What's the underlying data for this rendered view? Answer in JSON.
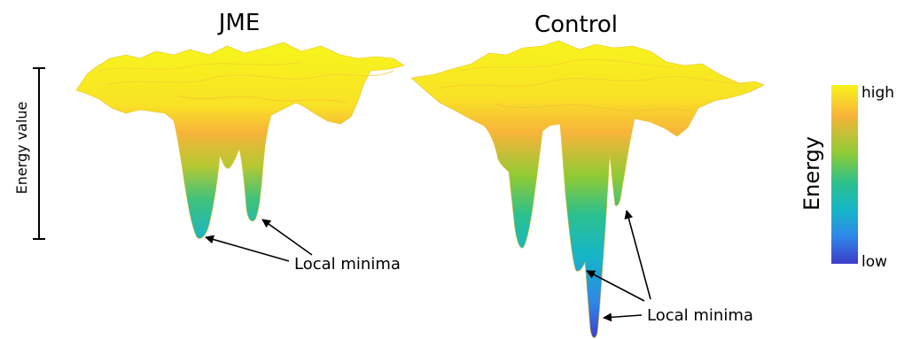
{
  "panels": [
    {
      "id": "jme",
      "title": "JME",
      "annotation": "Local minima"
    },
    {
      "id": "control",
      "title": "Control",
      "annotation": "Local minima"
    }
  ],
  "scale_bar": {
    "label": "Energy value"
  },
  "colorbar": {
    "title": "Energy",
    "high_label": "high",
    "low_label": "low",
    "colors": [
      "#f7f31d",
      "#f8b43a",
      "#8fcb35",
      "#2bc08e",
      "#16b6c8",
      "#2f86e8",
      "#3c3cc6"
    ]
  }
}
